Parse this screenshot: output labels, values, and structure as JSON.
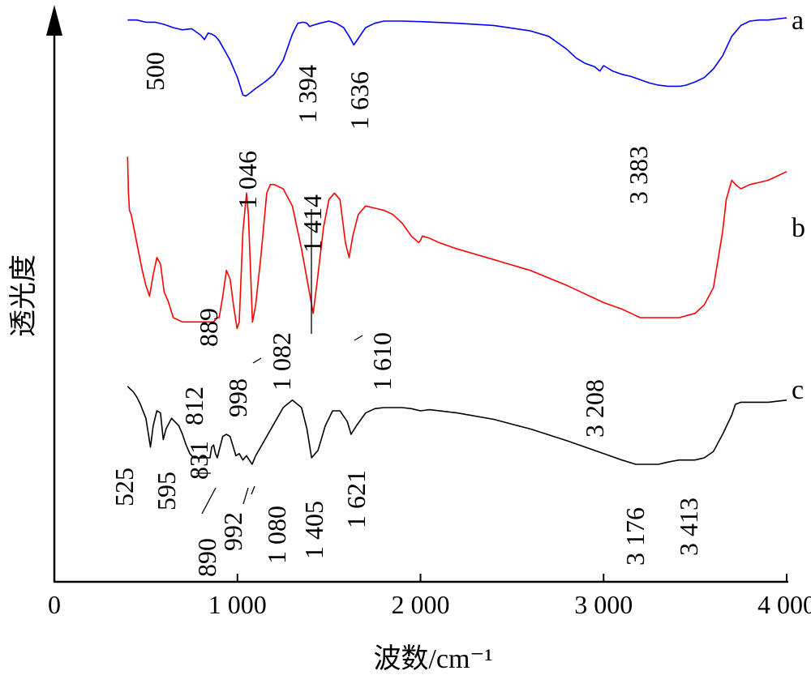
{
  "chart_data": {
    "type": "line",
    "title": "",
    "xlabel": "波数/cm⁻¹",
    "ylabel": "透光度",
    "xlim": [
      0,
      4000
    ],
    "x_ticks": [
      {
        "value": 0,
        "label": "0"
      },
      {
        "value": 1000,
        "label": "1 000"
      },
      {
        "value": 2000,
        "label": "2 000"
      },
      {
        "value": 3000,
        "label": "3 000"
      },
      {
        "value": 4000,
        "label": "4 000"
      }
    ],
    "y_tick_labels": false,
    "series": [
      {
        "name": "a",
        "color": "#0000ff",
        "x": [
          400,
          450,
          500,
          550,
          600,
          650,
          700,
          750,
          800,
          820,
          840,
          860,
          880,
          900,
          920,
          960,
          1000,
          1030,
          1046,
          1070,
          1100,
          1150,
          1200,
          1250,
          1300,
          1330,
          1360,
          1380,
          1394,
          1410,
          1450,
          1500,
          1540,
          1580,
          1610,
          1636,
          1660,
          1700,
          1750,
          1800,
          1900,
          2000,
          2200,
          2400,
          2600,
          2700,
          2800,
          2850,
          2900,
          2950,
          2980,
          3000,
          3050,
          3100,
          3150,
          3200,
          3250,
          3300,
          3350,
          3383,
          3420,
          3450,
          3500,
          3550,
          3600,
          3650,
          3700,
          3750,
          3800,
          3850,
          3900,
          4000
        ],
        "y": [
          95,
          95,
          93,
          93,
          91,
          88,
          86,
          87,
          81,
          77,
          83,
          82,
          80,
          76,
          70,
          58,
          42,
          26,
          25,
          28,
          32,
          38,
          45,
          58,
          82,
          92,
          93,
          92,
          89,
          90,
          92,
          94,
          92,
          88,
          80,
          72,
          78,
          88,
          92,
          94,
          94,
          93.5,
          92,
          90,
          85,
          80,
          68,
          60,
          55,
          52,
          48,
          53,
          48,
          45,
          43,
          40,
          37,
          35,
          34,
          34,
          34,
          35,
          38,
          42,
          50,
          62,
          80,
          90,
          94,
          95,
          95,
          97
        ]
      },
      {
        "name": "b",
        "color": "#ff0000",
        "x": [
          400,
          405,
          410,
          420,
          450,
          480,
          500,
          520,
          540,
          560,
          580,
          600,
          620,
          650,
          700,
          750,
          800,
          812,
          831,
          850,
          870,
          889,
          900,
          920,
          940,
          960,
          980,
          998,
          1010,
          1030,
          1050,
          1060,
          1082,
          1100,
          1130,
          1160,
          1180,
          1200,
          1250,
          1300,
          1350,
          1380,
          1414,
          1440,
          1470,
          1500,
          1530,
          1560,
          1590,
          1610,
          1630,
          1660,
          1700,
          1750,
          1800,
          1850,
          1900,
          1950,
          1990,
          2000,
          2010,
          2050,
          2100,
          2200,
          2400,
          2600,
          2800,
          3000,
          3100,
          3150,
          3200,
          3208,
          3300,
          3350,
          3413,
          3500,
          3550,
          3600,
          3650,
          3670,
          3700,
          3720,
          3750,
          3800,
          3850,
          3900,
          4000
        ],
        "y": [
          95,
          78,
          70,
          68,
          55,
          42,
          35,
          30,
          40,
          48,
          45,
          32,
          28,
          20,
          18,
          18,
          18,
          18,
          18,
          18,
          18,
          20,
          20,
          30,
          42,
          38,
          25,
          15,
          18,
          60,
          78,
          68,
          18,
          26,
          50,
          78,
          82,
          82,
          80,
          72,
          52,
          38,
          22,
          40,
          62,
          75,
          78,
          75,
          55,
          48,
          58,
          68,
          72,
          71,
          70,
          68,
          64,
          58,
          55,
          56,
          58,
          57,
          55,
          52,
          47,
          42,
          35,
          27,
          24,
          22,
          20,
          20,
          20,
          20,
          20,
          22,
          26,
          34,
          60,
          75,
          84,
          82,
          80,
          82,
          83,
          84,
          88
        ]
      },
      {
        "name": "c",
        "color": "#000000",
        "x": [
          400,
          410,
          430,
          450,
          470,
          500,
          525,
          540,
          560,
          580,
          595,
          610,
          640,
          680,
          700,
          720,
          740,
          760,
          800,
          831,
          850,
          860,
          870,
          880,
          890,
          900,
          920,
          940,
          960,
          992,
          1010,
          1030,
          1050,
          1080,
          1100,
          1150,
          1200,
          1250,
          1300,
          1350,
          1380,
          1405,
          1440,
          1480,
          1520,
          1560,
          1600,
          1621,
          1650,
          1700,
          1750,
          1800,
          1900,
          1950,
          2000,
          2050,
          2200,
          2400,
          2600,
          2800,
          3000,
          3100,
          3176,
          3200,
          3250,
          3300,
          3350,
          3380,
          3413,
          3450,
          3500,
          3550,
          3600,
          3650,
          3700,
          3720,
          3750,
          3800,
          3900,
          4000
        ],
        "y": [
          95,
          93,
          90,
          85,
          78,
          65,
          38,
          58,
          72,
          70,
          45,
          55,
          65,
          58,
          50,
          40,
          32,
          28,
          28,
          28,
          28,
          38,
          40,
          32,
          28,
          35,
          48,
          50,
          48,
          30,
          32,
          26,
          30,
          22,
          30,
          45,
          60,
          75,
          82,
          75,
          55,
          28,
          35,
          58,
          72,
          72,
          62,
          50,
          58,
          70,
          74,
          75,
          75,
          74,
          72,
          73,
          70,
          64,
          55,
          44,
          32,
          26,
          22,
          22,
          22,
          22,
          24,
          25,
          26,
          26,
          26,
          28,
          34,
          50,
          68,
          78,
          80,
          80,
          80,
          82
        ]
      }
    ],
    "curve_labels": [
      "a",
      "b",
      "c"
    ],
    "annotations": [
      {
        "text": "500",
        "series": "a"
      },
      {
        "text": "1 046",
        "series": "a"
      },
      {
        "text": "1 394",
        "series": "a"
      },
      {
        "text": "1 636",
        "series": "a"
      },
      {
        "text": "3 383",
        "series": "a"
      },
      {
        "text": "889",
        "series": "b"
      },
      {
        "text": "812",
        "series": "b"
      },
      {
        "text": "998",
        "series": "b"
      },
      {
        "text": "1 082",
        "series": "b"
      },
      {
        "text": "1 414",
        "series": "b"
      },
      {
        "text": "1 610",
        "series": "b"
      },
      {
        "text": "3 208",
        "series": "b"
      },
      {
        "text": "525",
        "series": "c"
      },
      {
        "text": "595",
        "series": "c"
      },
      {
        "text": "831",
        "series": "c"
      },
      {
        "text": "890",
        "series": "c"
      },
      {
        "text": "992",
        "series": "c"
      },
      {
        "text": "1 080",
        "series": "c"
      },
      {
        "text": "1 405",
        "series": "c"
      },
      {
        "text": "1 621",
        "series": "c"
      },
      {
        "text": "3 176",
        "series": "c"
      },
      {
        "text": "3 413",
        "series": "c"
      }
    ],
    "legend": "curve labels at right end",
    "grid": false
  }
}
